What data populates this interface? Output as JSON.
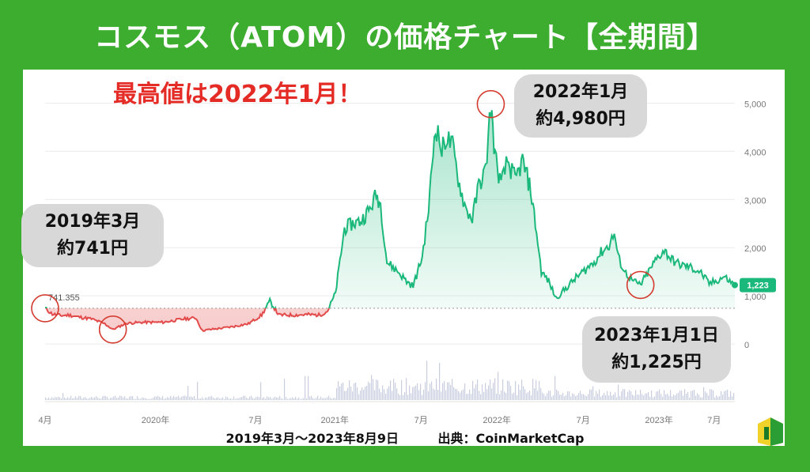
{
  "page_title": "コスモス（ATOM）の価格チャート【全期間】",
  "headline": "最高値は2022年1月！",
  "callouts": {
    "top": {
      "line1": "2022年1月",
      "line2": "約4,980円"
    },
    "left": {
      "line1": "2019年3月",
      "line2": "約741円"
    },
    "bottom": {
      "line1": "2023年1月1日",
      "line2": "約1,225円"
    }
  },
  "footer": {
    "period": "2019年3月〜2023年8月9日",
    "source": "出典：CoinMarketCap"
  },
  "colors": {
    "up": "#1ab87a",
    "down": "#e34a4a",
    "background": "#3dad2f"
  },
  "chart_data": {
    "type": "line",
    "y_unit": "JPY",
    "ylim": [
      -1000,
      5500
    ],
    "yticks": [
      0,
      1000,
      2000,
      3000,
      4000,
      5000
    ],
    "ytick_labels": [
      "0",
      "1,000",
      "2,000",
      "3,000",
      "4,000",
      "5,000"
    ],
    "xticks": [
      "4月",
      "2020年",
      "7月",
      "2021年",
      "7月",
      "2022年",
      "7月",
      "2023年",
      "7月"
    ],
    "start_label": "741.355",
    "current_label": "1,223",
    "baseline": 741,
    "points": [
      [
        "2019-03-15",
        741
      ],
      [
        "2019-04-01",
        620
      ],
      [
        "2019-04-20",
        590
      ],
      [
        "2019-05-10",
        600
      ],
      [
        "2019-06-01",
        560
      ],
      [
        "2019-07-01",
        520
      ],
      [
        "2019-08-01",
        420
      ],
      [
        "2019-08-20",
        300
      ],
      [
        "2019-09-20",
        430
      ],
      [
        "2019-11-01",
        450
      ],
      [
        "2019-12-15",
        450
      ],
      [
        "2020-02-01",
        520
      ],
      [
        "2020-03-01",
        540
      ],
      [
        "2020-03-15",
        280
      ],
      [
        "2020-05-01",
        330
      ],
      [
        "2020-06-01",
        370
      ],
      [
        "2020-07-01",
        420
      ],
      [
        "2020-08-01",
        600
      ],
      [
        "2020-08-20",
        890
      ],
      [
        "2020-09-10",
        600
      ],
      [
        "2020-10-15",
        600
      ],
      [
        "2020-11-15",
        610
      ],
      [
        "2020-12-15",
        600
      ],
      [
        "2021-01-01",
        680
      ],
      [
        "2021-01-20",
        1050
      ],
      [
        "2021-02-10",
        2400
      ],
      [
        "2021-03-01",
        2500
      ],
      [
        "2021-03-20",
        2550
      ],
      [
        "2021-04-10",
        2800
      ],
      [
        "2021-04-25",
        3100
      ],
      [
        "2021-05-05",
        2900
      ],
      [
        "2021-05-20",
        1700
      ],
      [
        "2021-06-15",
        1500
      ],
      [
        "2021-07-05",
        1300
      ],
      [
        "2021-07-20",
        1200
      ],
      [
        "2021-08-10",
        1800
      ],
      [
        "2021-08-25",
        2800
      ],
      [
        "2021-09-10",
        4580
      ],
      [
        "2021-09-25",
        4000
      ],
      [
        "2021-10-05",
        4300
      ],
      [
        "2021-10-20",
        4100
      ],
      [
        "2021-11-05",
        3300
      ],
      [
        "2021-11-20",
        2800
      ],
      [
        "2021-12-05",
        2600
      ],
      [
        "2021-12-20",
        3300
      ],
      [
        "2022-01-05",
        3600
      ],
      [
        "2022-01-17",
        4980
      ],
      [
        "2022-01-27",
        3900
      ],
      [
        "2022-02-10",
        3300
      ],
      [
        "2022-02-25",
        3800
      ],
      [
        "2022-03-15",
        3400
      ],
      [
        "2022-04-01",
        3800
      ],
      [
        "2022-04-20",
        3200
      ],
      [
        "2022-05-01",
        2500
      ],
      [
        "2022-05-15",
        1500
      ],
      [
        "2022-06-01",
        1300
      ],
      [
        "2022-06-18",
        950
      ],
      [
        "2022-07-05",
        1100
      ],
      [
        "2022-08-01",
        1350
      ],
      [
        "2022-08-20",
        1500
      ],
      [
        "2022-09-15",
        1700
      ],
      [
        "2022-10-01",
        1900
      ],
      [
        "2022-10-20",
        2050
      ],
      [
        "2022-11-01",
        2300
      ],
      [
        "2022-11-10",
        1800
      ],
      [
        "2022-11-25",
        1500
      ],
      [
        "2022-12-15",
        1300
      ],
      [
        "2023-01-01",
        1225
      ],
      [
        "2023-01-20",
        1500
      ],
      [
        "2023-02-10",
        1800
      ],
      [
        "2023-02-25",
        1950
      ],
      [
        "2023-03-15",
        1750
      ],
      [
        "2023-04-01",
        1650
      ],
      [
        "2023-04-25",
        1600
      ],
      [
        "2023-05-20",
        1500
      ],
      [
        "2023-06-10",
        1250
      ],
      [
        "2023-06-25",
        1300
      ],
      [
        "2023-07-15",
        1400
      ],
      [
        "2023-07-28",
        1300
      ],
      [
        "2023-08-09",
        1223
      ]
    ]
  }
}
